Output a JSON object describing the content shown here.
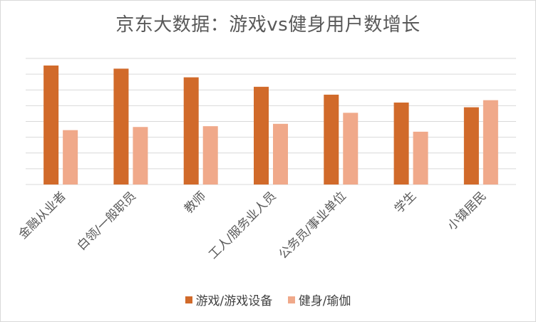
{
  "chart_data": {
    "type": "bar",
    "title": "京东大数据：游戏vs健身用户数增长",
    "xlabel": "",
    "ylabel": "",
    "categories": [
      "金融从业者",
      "白领/一般职员",
      "教师",
      "工人/服务业人员",
      "公务员/事业单位",
      "学生",
      "小镇居民"
    ],
    "series": [
      {
        "name": "游戏/游戏设备",
        "color": "#d16a2a",
        "values": [
          7.55,
          7.35,
          6.8,
          6.2,
          5.7,
          5.2,
          4.9
        ]
      },
      {
        "name": "健身/瑜伽",
        "color": "#f0a98a",
        "values": [
          3.45,
          3.65,
          3.7,
          3.85,
          4.55,
          3.35,
          5.35
        ]
      }
    ],
    "ylim": [
      0,
      8
    ],
    "grid": true,
    "legend_position": "bottom",
    "y_tick_labels_shown": false
  }
}
